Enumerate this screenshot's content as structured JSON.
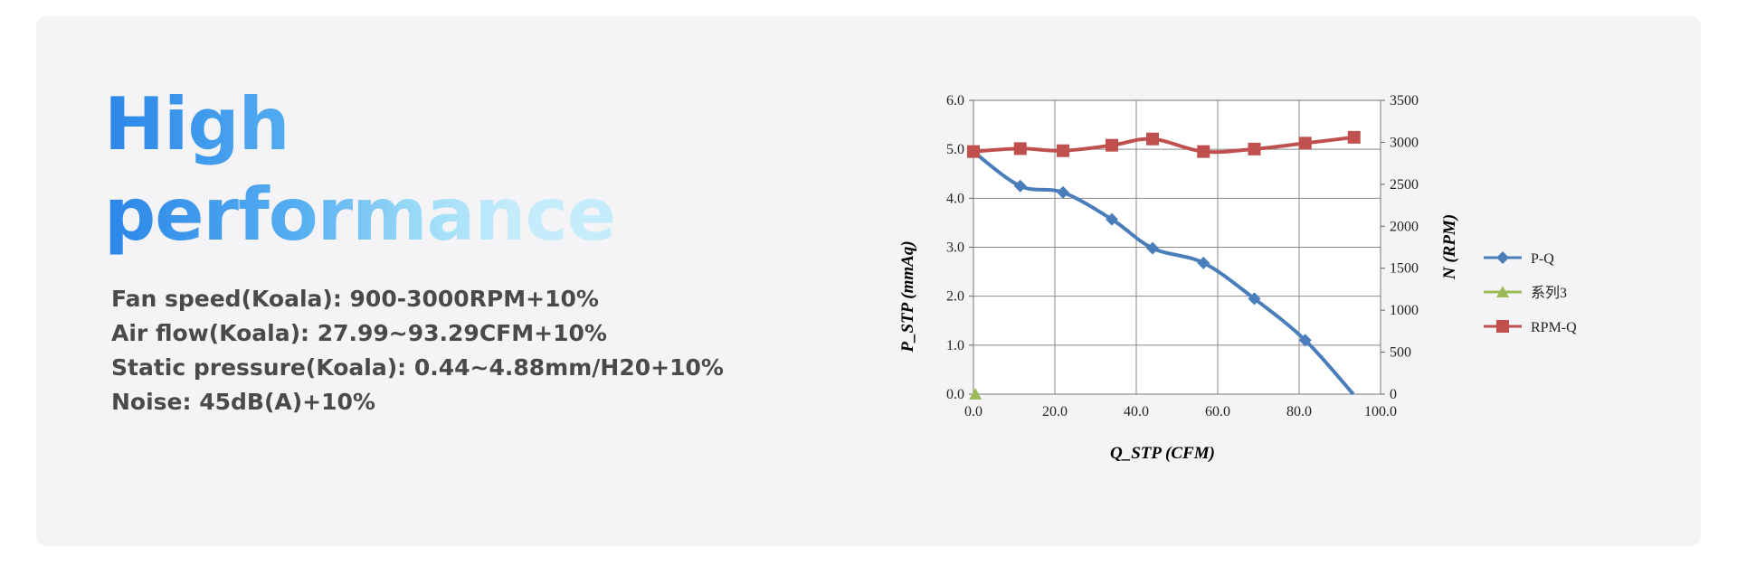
{
  "headline": {
    "line1": "High",
    "line2": "performance"
  },
  "specs": [
    "Fan speed(Koala): 900-3000RPM+10%",
    "Air flow(Koala): 27.99~93.29CFM+10%",
    "Static pressure(Koala): 0.44~4.88mm/H20+10%",
    "Noise: 45dB(A)+10%"
  ],
  "colors": {
    "card_bg": "#f4f4f6",
    "gradient_start": "#2b86e8",
    "gradient_end": "#c5ecfb",
    "spec_text": "#4a4a4a",
    "pq": "#4a7ebb",
    "series3": "#9bbb59",
    "rpmq": "#c0504d"
  },
  "chart_data": {
    "type": "line",
    "xlabel": "Q_STP (CFM)",
    "ylabel": "P_STP (mmAq)",
    "y2label": "N (RPM)",
    "xlim": [
      0,
      100
    ],
    "ylim": [
      0,
      6
    ],
    "y2lim": [
      0,
      3500
    ],
    "x_ticks": [
      "0.0",
      "20.0",
      "40.0",
      "60.0",
      "80.0",
      "100.0"
    ],
    "y_ticks": [
      "0.0",
      "1.0",
      "2.0",
      "3.0",
      "4.0",
      "5.0",
      "6.0"
    ],
    "y2_ticks": [
      "0",
      "500",
      "1000",
      "1500",
      "2000",
      "2500",
      "3000",
      "3500"
    ],
    "grid": true,
    "legend_position": "right",
    "series": [
      {
        "name": "P-Q",
        "axis": "left",
        "marker": "diamond",
        "color": "#4a7ebb",
        "x": [
          0.0,
          11.5,
          22.0,
          34.0,
          44.0,
          56.5,
          69.0,
          81.5
        ],
        "y": [
          4.95,
          4.25,
          4.12,
          3.57,
          2.98,
          2.68,
          1.95,
          1.1
        ],
        "tail": {
          "x": 93.3,
          "y": 0.0
        }
      },
      {
        "name": "系列3",
        "axis": "left",
        "marker": "triangle",
        "color": "#9bbb59",
        "x": [
          0.5
        ],
        "y": [
          0.0
        ]
      },
      {
        "name": "RPM-Q",
        "axis": "right",
        "marker": "square",
        "color": "#c0504d",
        "x": [
          0.0,
          11.5,
          22.0,
          34.0,
          44.0,
          56.5,
          69.0,
          81.5,
          93.5
        ],
        "y": [
          2890,
          2925,
          2900,
          2965,
          3040,
          2890,
          2920,
          2990,
          3060
        ]
      }
    ]
  }
}
